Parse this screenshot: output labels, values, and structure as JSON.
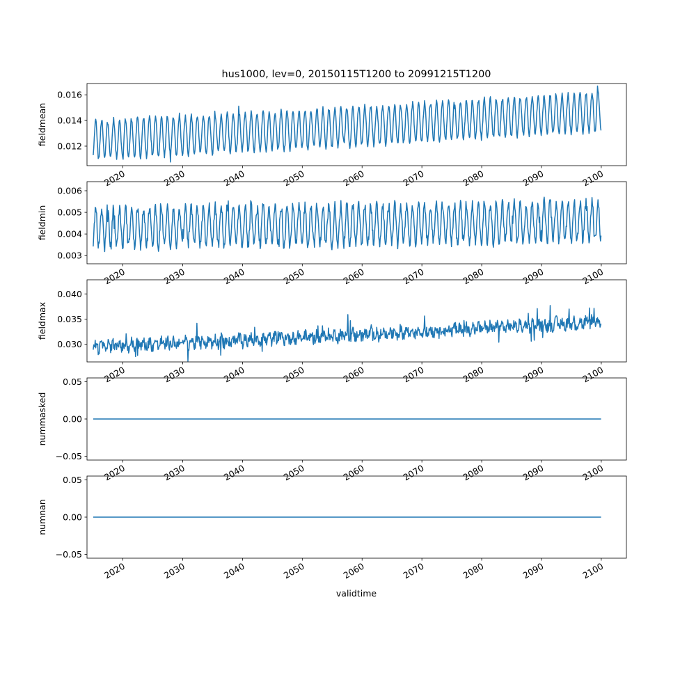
{
  "figure": {
    "title": "hus1000, lev=0, 20150115T1200 to 20991215T1200",
    "xlabel": "validtime",
    "line_color": "#1f77b4"
  },
  "chart_data": [
    {
      "type": "line",
      "ylabel": "fieldmean",
      "xlim": [
        2014.0,
        2104.2
      ],
      "ylim": [
        0.01048,
        0.01688
      ],
      "yticks": [
        0.012,
        0.014,
        0.016
      ],
      "ytick_labels": [
        "0.012",
        "0.014",
        "0.016"
      ],
      "xticks": [
        2020,
        2030,
        2040,
        2050,
        2060,
        2070,
        2080,
        2090,
        2100
      ],
      "xtick_labels": [
        "2020",
        "2030",
        "2040",
        "2050",
        "2060",
        "2070",
        "2080",
        "2090",
        "2100"
      ],
      "series": [
        {
          "x_start": 2015.04,
          "x_step": 0.08333,
          "trend": [
            0.0125,
            0.0135,
            0.0147
          ],
          "seasonal_amplitude": 0.0015,
          "noise": 0.0002,
          "values": []
        }
      ]
    },
    {
      "type": "line",
      "ylabel": "fieldmin",
      "xlim": [
        2014.0,
        2104.2
      ],
      "ylim": [
        0.00262,
        0.00642
      ],
      "yticks": [
        0.003,
        0.004,
        0.005,
        0.006
      ],
      "ytick_labels": [
        "0.003",
        "0.004",
        "0.005",
        "0.006"
      ],
      "xticks": [
        2020,
        2030,
        2040,
        2050,
        2060,
        2070,
        2080,
        2090,
        2100
      ],
      "xtick_labels": [
        "2020",
        "2030",
        "2040",
        "2050",
        "2060",
        "2070",
        "2080",
        "2090",
        "2100"
      ],
      "series": [
        {
          "x_start": 2015.04,
          "x_step": 0.08333,
          "trend": [
            0.0043,
            0.0044,
            0.0046
          ],
          "seasonal_amplitude": 0.0009,
          "noise": 0.00025,
          "values": []
        }
      ]
    },
    {
      "type": "line",
      "ylabel": "fieldmax",
      "xlim": [
        2014.0,
        2104.2
      ],
      "ylim": [
        0.0265,
        0.0428
      ],
      "yticks": [
        0.03,
        0.035,
        0.04
      ],
      "ytick_labels": [
        "0.030",
        "0.035",
        "0.040"
      ],
      "xticks": [
        2020,
        2030,
        2040,
        2050,
        2060,
        2070,
        2080,
        2090,
        2100
      ],
      "xtick_labels": [
        "2020",
        "2030",
        "2040",
        "2050",
        "2060",
        "2070",
        "2080",
        "2090",
        "2100"
      ],
      "series": [
        {
          "x_start": 2015.04,
          "x_step": 0.08333,
          "trend": [
            0.0295,
            0.0318,
            0.0345
          ],
          "seasonal_amplitude": 0.0006,
          "noise": 0.0011,
          "values": []
        }
      ]
    },
    {
      "type": "line",
      "ylabel": "nummasked",
      "xlim": [
        2014.0,
        2104.2
      ],
      "ylim": [
        -0.055,
        0.055
      ],
      "yticks": [
        -0.05,
        0.0,
        0.05
      ],
      "ytick_labels": [
        "−0.05",
        "0.00",
        "0.05"
      ],
      "xticks": [
        2020,
        2030,
        2040,
        2050,
        2060,
        2070,
        2080,
        2090,
        2100
      ],
      "xtick_labels": [
        "2020",
        "2030",
        "2040",
        "2050",
        "2060",
        "2070",
        "2080",
        "2090",
        "2100"
      ],
      "series": [
        {
          "x": [
            2015.04,
            2099.96
          ],
          "values": [
            0,
            0
          ]
        }
      ]
    },
    {
      "type": "line",
      "ylabel": "numnan",
      "xlim": [
        2014.0,
        2104.2
      ],
      "ylim": [
        -0.055,
        0.055
      ],
      "yticks": [
        -0.05,
        0.0,
        0.05
      ],
      "ytick_labels": [
        "−0.05",
        "0.00",
        "0.05"
      ],
      "xticks": [
        2020,
        2030,
        2040,
        2050,
        2060,
        2070,
        2080,
        2090,
        2100
      ],
      "xtick_labels": [
        "2020",
        "2030",
        "2040",
        "2050",
        "2060",
        "2070",
        "2080",
        "2090",
        "2100"
      ],
      "series": [
        {
          "x": [
            2015.04,
            2099.96
          ],
          "values": [
            0,
            0
          ]
        }
      ]
    }
  ]
}
